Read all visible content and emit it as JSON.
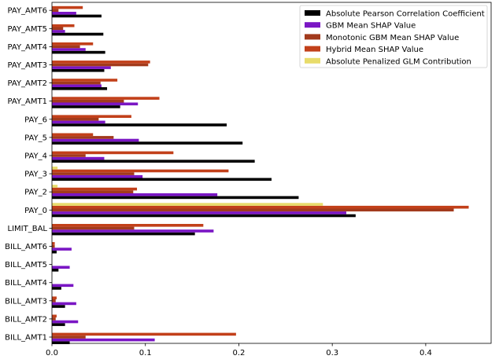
{
  "chart_data": {
    "type": "bar",
    "orientation": "horizontal",
    "categories": [
      "BILL_AMT1",
      "BILL_AMT2",
      "BILL_AMT3",
      "BILL_AMT4",
      "BILL_AMT5",
      "BILL_AMT6",
      "LIMIT_BAL",
      "PAY_0",
      "PAY_2",
      "PAY_3",
      "PAY_4",
      "PAY_5",
      "PAY_6",
      "PAY_AMT1",
      "PAY_AMT2",
      "PAY_AMT3",
      "PAY_AMT4",
      "PAY_AMT5",
      "PAY_AMT6"
    ],
    "series": [
      {
        "name": "Absolute Pearson Correlation Coefficient",
        "color": "#000000",
        "values": [
          0.019,
          0.014,
          0.014,
          0.01,
          0.007,
          0.005,
          0.153,
          0.325,
          0.264,
          0.235,
          0.217,
          0.204,
          0.187,
          0.073,
          0.059,
          0.056,
          0.057,
          0.055,
          0.053
        ]
      },
      {
        "name": "GBM Mean SHAP Value",
        "color": "#7a16c4",
        "values": [
          0.11,
          0.028,
          0.026,
          0.023,
          0.019,
          0.021,
          0.173,
          0.315,
          0.177,
          0.097,
          0.056,
          0.093,
          0.057,
          0.092,
          0.053,
          0.063,
          0.036,
          0.014,
          0.026
        ]
      },
      {
        "name": "Monotonic GBM Mean SHAP Value",
        "color": "#a23a1c",
        "values": [
          0.036,
          0.004,
          0.004,
          0.0,
          0.0,
          0.003,
          0.088,
          0.43,
          0.087,
          0.088,
          0.036,
          0.066,
          0.05,
          0.077,
          0.052,
          0.103,
          0.03,
          0.012,
          0.007
        ]
      },
      {
        "name": "Hybrid Mean SHAP Value",
        "color": "#c2401a",
        "values": [
          0.197,
          0.005,
          0.005,
          0.0,
          0.0,
          0.003,
          0.162,
          0.446,
          0.091,
          0.189,
          0.13,
          0.044,
          0.085,
          0.115,
          0.07,
          0.105,
          0.044,
          0.024,
          0.033
        ]
      },
      {
        "name": "Absolute Penalized GLM Contribution",
        "color": "#e8dc6b",
        "values": [
          0.0,
          0.0,
          0.0,
          0.0,
          0.0,
          0.0,
          0.0,
          0.29,
          0.006,
          0.006,
          0.0,
          0.0,
          0.0,
          0.0,
          0.0,
          0.0,
          0.0,
          0.0,
          0.0
        ]
      }
    ],
    "x_ticks": [
      "0.0",
      "0.1",
      "0.2",
      "0.3",
      "0.4"
    ],
    "xlim": [
      0,
      0.47
    ],
    "xlabel": "",
    "ylabel": "",
    "title": "",
    "grid": false,
    "legend_position": "top-right"
  }
}
